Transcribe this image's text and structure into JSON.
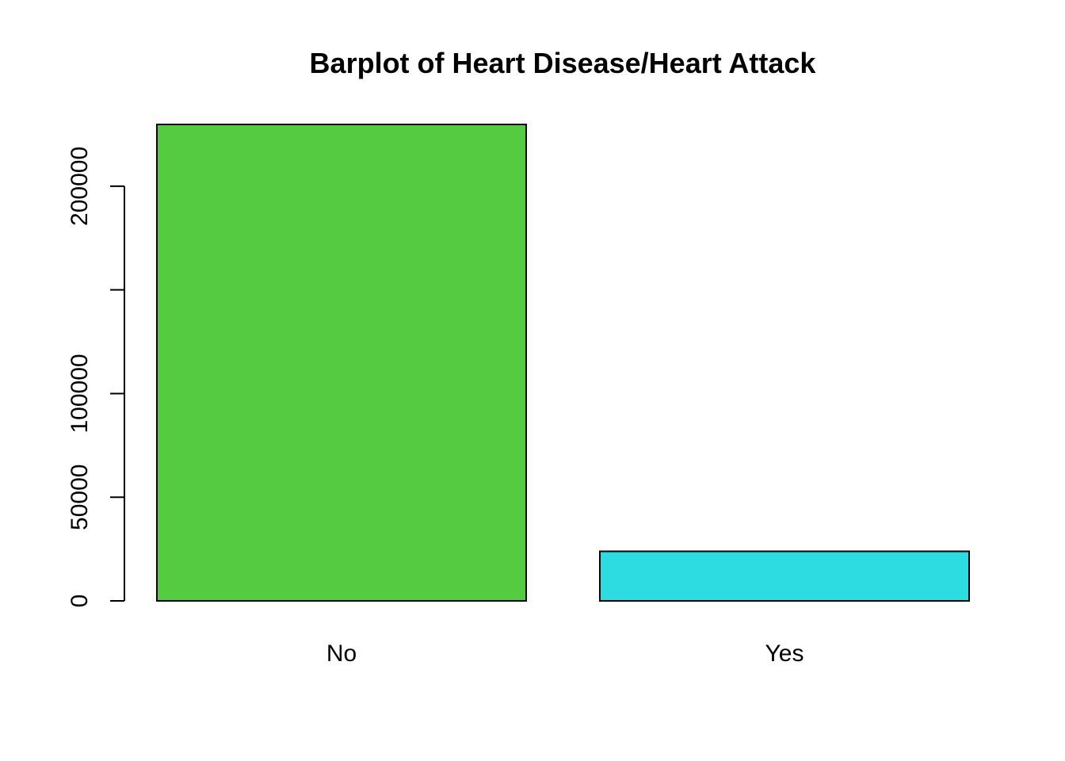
{
  "chart_data": {
    "type": "bar",
    "title": "Barplot of Heart Disease/Heart Attack",
    "xlabel": "",
    "ylabel": "",
    "categories": [
      "No",
      "Yes"
    ],
    "values": [
      229787,
      23893
    ],
    "colors": [
      "#54CB41",
      "#2CDCE0"
    ],
    "ylim": [
      0,
      229787
    ],
    "y_ticks": [
      0,
      50000,
      100000,
      150000,
      200000
    ],
    "y_tick_labels": [
      "0",
      "50000",
      "100000",
      "",
      "200000"
    ],
    "grid": false,
    "legend": "none"
  }
}
